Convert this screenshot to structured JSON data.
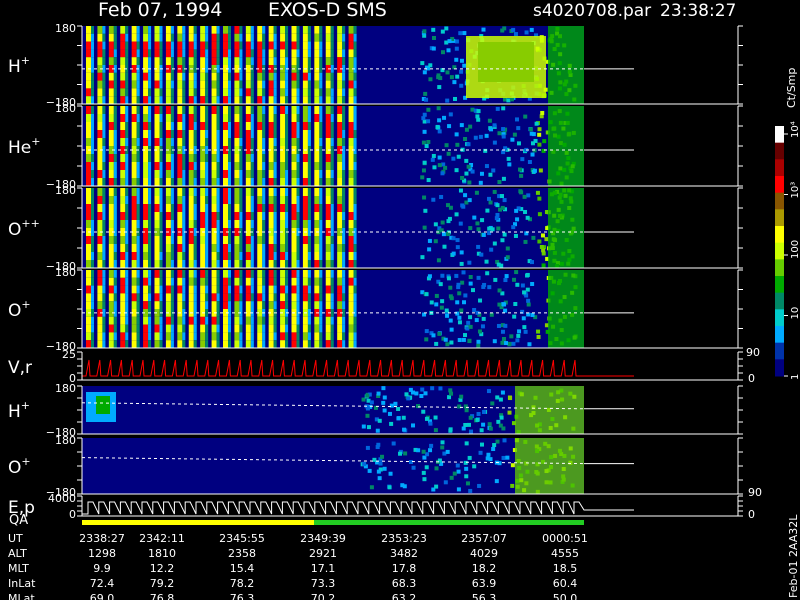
{
  "header": {
    "date": "Feb 07, 1994",
    "instrument": "EXOS-D SMS",
    "file": "s4020708.par",
    "time": "23:38:27"
  },
  "colors": {
    "background": "#000000",
    "frame": "#ffffff",
    "ion_trace": "#ff0000",
    "time_bar_left": "#ffff00",
    "time_bar_right": "#22cc22"
  },
  "chart_data": {
    "type": "heatmap",
    "colorbar": {
      "label": "Ct/Smp",
      "tick_labels": [
        "1",
        "10",
        "100",
        "10³",
        "10⁴"
      ],
      "scale": "log",
      "stops": [
        "#000080",
        "#0033aa",
        "#00aaff",
        "#00cccc",
        "#008866",
        "#00aa00",
        "#66cc00",
        "#ccff00",
        "#ffff00",
        "#aa9900",
        "#885500",
        "#ff0000",
        "#aa0000",
        "#660000",
        "#ffffff"
      ]
    },
    "panels": [
      {
        "id": "hplus",
        "label_base": "H",
        "label_sup": "+",
        "ymax": "180",
        "ymin": "−180",
        "type": "angle-spectrogram"
      },
      {
        "id": "heplus",
        "label_base": "He",
        "label_sup": "+",
        "ymax": "180",
        "ymin": "−180",
        "type": "angle-spectrogram"
      },
      {
        "id": "oplusplus",
        "label_base": "O",
        "label_sup": "++",
        "ymax": "180",
        "ymin": "−180",
        "type": "angle-spectrogram"
      },
      {
        "id": "oplus",
        "label_base": "O",
        "label_sup": "+",
        "ymax": "180",
        "ymin": "−180",
        "type": "angle-spectrogram"
      },
      {
        "id": "vr",
        "label_base": "V,r",
        "label_sup": "",
        "ymax": "25",
        "ymin": "0",
        "right_max": "90",
        "right_min": "0",
        "type": "line"
      },
      {
        "id": "hplus2",
        "label_base": "H",
        "label_sup": "+",
        "ymax": "180",
        "ymin": "−180",
        "type": "energy-spectrogram"
      },
      {
        "id": "oplus2",
        "label_base": "O",
        "label_sup": "+",
        "ymax": "180",
        "ymin": "−180",
        "right_min": "90",
        "type": "energy-spectrogram"
      },
      {
        "id": "ep",
        "label_base": "E,p",
        "label_sup": "",
        "ymax": "4000",
        "ymin": "0",
        "right_min": "0",
        "type": "line"
      }
    ],
    "qa_label": "QA",
    "ephemeris": {
      "rows": [
        {
          "label": "UT",
          "values": [
            "2338:27",
            "2342:11",
            "2345:55",
            "2349:39",
            "2353:23",
            "2357:07",
            "0000:51"
          ]
        },
        {
          "label": "ALT",
          "values": [
            "1298",
            "1810",
            "2358",
            "2921",
            "3482",
            "4029",
            "4555"
          ]
        },
        {
          "label": "MLT",
          "values": [
            "9.9",
            "12.2",
            "15.4",
            "17.1",
            "17.8",
            "18.2",
            "18.5"
          ]
        },
        {
          "label": "InLat",
          "values": [
            "72.4",
            "79.2",
            "78.2",
            "73.3",
            "68.3",
            "63.9",
            "60.4"
          ]
        },
        {
          "label": "MLat",
          "values": [
            "69.0",
            "76.8",
            "76.3",
            "70.2",
            "63.2",
            "56.3",
            "50.0"
          ]
        }
      ]
    },
    "side_label": "Feb-01 2AA32L"
  }
}
